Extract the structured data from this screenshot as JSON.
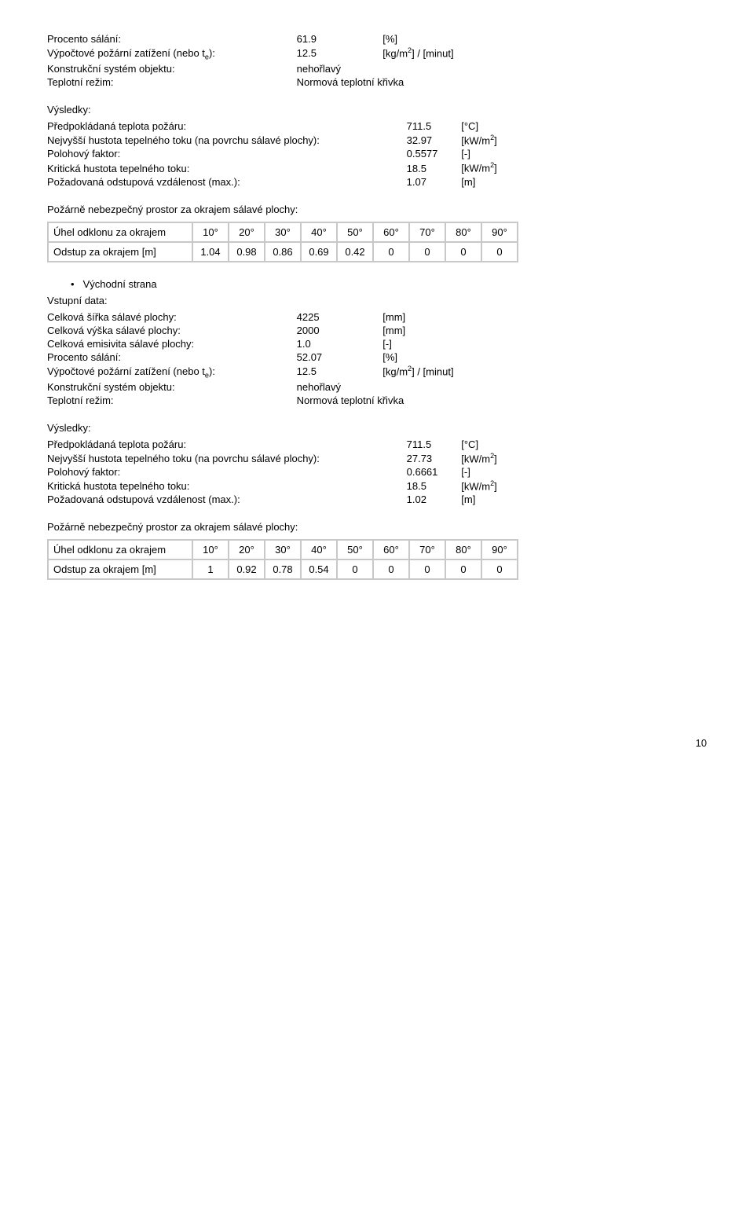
{
  "labels": {
    "procento_salani": "Procento sálání:",
    "vypoctove": "Výpočtové požární zatížení (nebo t",
    "vypoctove_sub": "e",
    "vypoctove_after": "):",
    "konstrukcni": "Konstrukční systém objektu:",
    "teplotni": "Teplotní režim:",
    "vysledky": "Výsledky:",
    "predpokladana": "Předpokládaná teplota požáru:",
    "nejvyssi": "Nejvyšší hustota tepelného toku (na povrchu sálavé plochy):",
    "polohovy": "Polohový faktor:",
    "kriticka": "Kritická hustota tepelného toku:",
    "pozadovana": "Požadovaná odstupová vzdálenost (max.):",
    "pozarne": "Požárně nebezpečný prostor za okrajem sálavé plochy:",
    "uhel": "Úhel odklonu za okrajem",
    "odstup": "Odstup za okrajem [m]",
    "vstupni": "Vstupní data:",
    "celkova_sirka": "Celková šířka sálavé plochy:",
    "celkova_vyska": "Celková výška sálavé plochy:",
    "celkova_emis": "Celková emisivita sálavé plochy:",
    "vychodni": "Východní strana"
  },
  "units": {
    "percent": "[%]",
    "kgm2_minut_pre": "[kg/m",
    "kgm2_minut_post": "] / [minut]",
    "nehorlavy": "nehořlavý",
    "normova": "Normová teplotní křivka",
    "celsius": "[°C]",
    "kwm2_pre": "[kW/m",
    "kwm2_post": "]",
    "dash": "[-]",
    "m": "[m]",
    "mm": "[mm]"
  },
  "top": {
    "procento": "61.9",
    "vypoctove": "12.5",
    "predpokladana": "711.5",
    "nejvyssi": "32.97",
    "polohovy": "0.5577",
    "kriticka": "18.5",
    "pozadovana": "1.07"
  },
  "table1": {
    "angles": [
      "10°",
      "20°",
      "30°",
      "40°",
      "50°",
      "60°",
      "70°",
      "80°",
      "90°"
    ],
    "values": [
      "1.04",
      "0.98",
      "0.86",
      "0.69",
      "0.42",
      "0",
      "0",
      "0",
      "0"
    ]
  },
  "east": {
    "sirka": "4225",
    "vyska": "2000",
    "emis": "1.0",
    "procento": "52.07",
    "vypoctove": "12.5",
    "predpokladana": "711.5",
    "nejvyssi": "27.73",
    "polohovy": "0.6661",
    "kriticka": "18.5",
    "pozadovana": "1.02"
  },
  "table2": {
    "angles": [
      "10°",
      "20°",
      "30°",
      "40°",
      "50°",
      "60°",
      "70°",
      "80°",
      "90°"
    ],
    "values": [
      "1",
      "0.92",
      "0.78",
      "0.54",
      "0",
      "0",
      "0",
      "0",
      "0"
    ]
  },
  "page": "10"
}
